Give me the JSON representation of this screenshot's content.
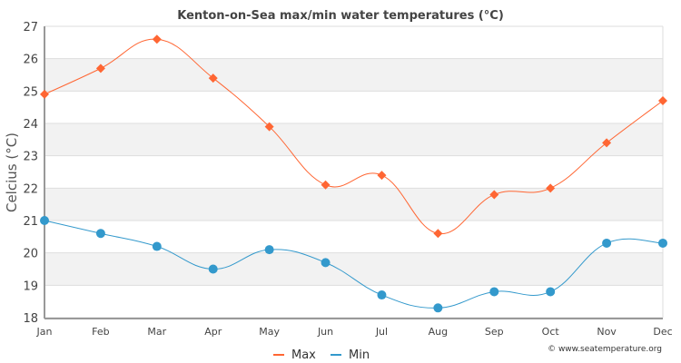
{
  "chart_data": {
    "type": "line",
    "title": "Kenton-on-Sea max/min water temperatures (°C)",
    "xlabel": "",
    "ylabel": "Celcius (°C)",
    "categories": [
      "Jan",
      "Feb",
      "Mar",
      "Apr",
      "May",
      "Jun",
      "Jul",
      "Aug",
      "Sep",
      "Oct",
      "Nov",
      "Dec"
    ],
    "ylim": [
      18,
      27
    ],
    "yticks": [
      18,
      19,
      20,
      21,
      22,
      23,
      24,
      25,
      26,
      27
    ],
    "grid": true,
    "legend_position": "bottom-center",
    "series": [
      {
        "name": "Max",
        "color": "#ff6633",
        "marker": "diamond",
        "values": [
          24.9,
          25.7,
          26.6,
          25.4,
          23.9,
          22.1,
          22.4,
          20.6,
          21.8,
          22.0,
          23.4,
          24.7
        ]
      },
      {
        "name": "Min",
        "color": "#3399cc",
        "marker": "circle",
        "values": [
          21.0,
          20.6,
          20.2,
          19.5,
          20.1,
          19.7,
          18.7,
          18.3,
          18.8,
          18.8,
          20.3,
          20.3
        ]
      }
    ],
    "credit": "© www.seatemperature.org"
  }
}
